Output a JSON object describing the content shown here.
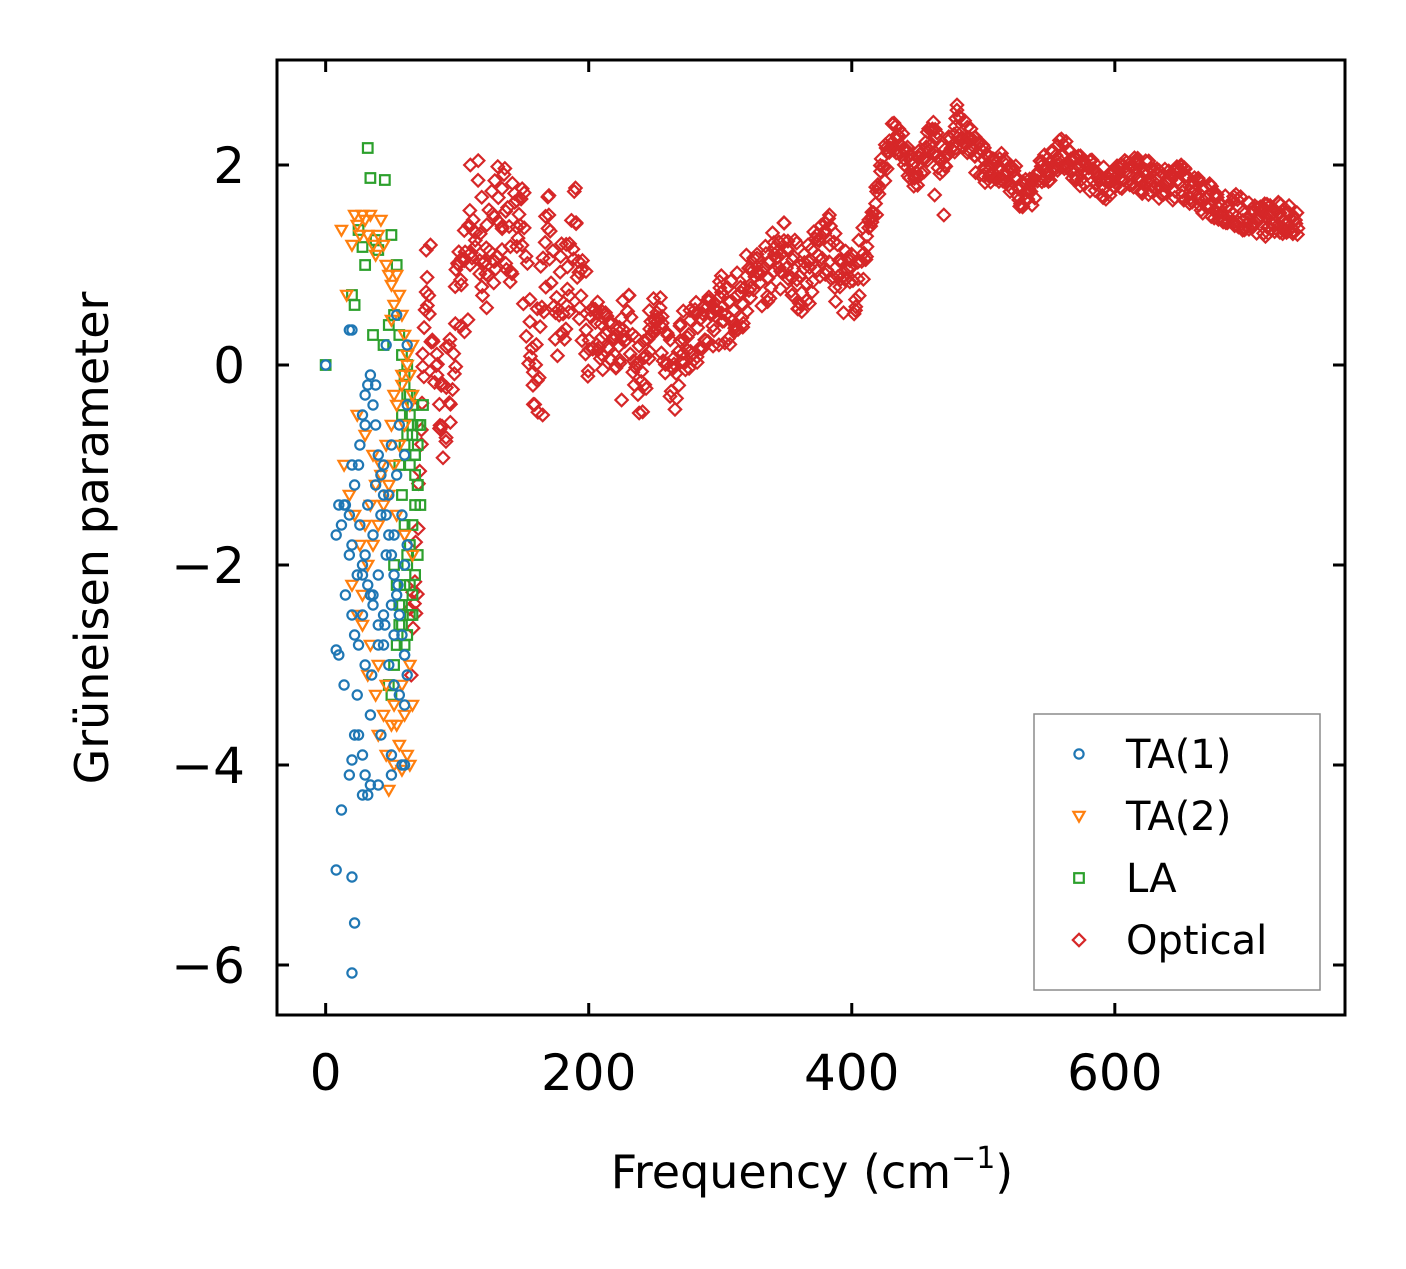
{
  "chart_data": {
    "type": "scatter",
    "xlabel": "Frequency (cm",
    "xlabel_sup": "−1",
    "xlabel_close": ")",
    "ylabel": "Grüneisen parameter",
    "xlim": [
      -37,
      775
    ],
    "ylim": [
      -6.5,
      3.05
    ],
    "xticks": [
      0,
      200,
      400,
      600
    ],
    "xtick_labels": [
      "0",
      "200",
      "400",
      "600"
    ],
    "yticks": [
      -6,
      -4,
      -2,
      0,
      2
    ],
    "ytick_labels": [
      "−6",
      "−4",
      "−2",
      "0",
      "2"
    ],
    "legend_position": "lower-right",
    "series": [
      {
        "name": "TA(1)",
        "marker": "circle",
        "color": "#1f77b4",
        "x": [
          0,
          15,
          18,
          20,
          12,
          14,
          22,
          25,
          26,
          28,
          30,
          32,
          34,
          36,
          38,
          40,
          42,
          44,
          46,
          48,
          50,
          52,
          54,
          56,
          58,
          60,
          62,
          10,
          15,
          20,
          25,
          30,
          35,
          40,
          45,
          50,
          55,
          60,
          62,
          28,
          32,
          36,
          40,
          44,
          48,
          52,
          56,
          60,
          24,
          30,
          36,
          42,
          48,
          54,
          60,
          20,
          26,
          32,
          38,
          44,
          50,
          56,
          62,
          22,
          28,
          34,
          40,
          46,
          52,
          58,
          10,
          20,
          30,
          38,
          46,
          54,
          62,
          8,
          18,
          28,
          36,
          44,
          52,
          60,
          14,
          24,
          34,
          42,
          50,
          58,
          18,
          28,
          40,
          50,
          60,
          12,
          20,
          22,
          25,
          28,
          30,
          32,
          34,
          8,
          20,
          22
        ],
        "y": [
          0,
          -1.4,
          -1.5,
          0.35,
          -1.6,
          -1.4,
          -1.2,
          -1.0,
          -0.8,
          -0.5,
          -0.3,
          -0.2,
          -0.1,
          -0.4,
          -0.6,
          -0.9,
          -1.1,
          -1.3,
          -1.5,
          -1.7,
          -1.9,
          -2.1,
          -2.3,
          -2.5,
          -2.7,
          -2.9,
          -3.1,
          -2.9,
          -2.3,
          -2.5,
          -2.8,
          -3.0,
          -3.1,
          -2.8,
          -2.6,
          -2.4,
          -2.2,
          -2.0,
          -1.8,
          -2.0,
          -2.2,
          -2.4,
          -2.6,
          -2.8,
          -3.0,
          -3.2,
          -3.3,
          -3.4,
          -2.1,
          -1.9,
          -1.7,
          -1.5,
          -1.3,
          -1.1,
          -0.9,
          -1.8,
          -1.6,
          -1.4,
          -1.2,
          -1.0,
          -0.8,
          -0.6,
          -0.4,
          -2.7,
          -2.5,
          -2.3,
          -2.1,
          -1.9,
          -1.7,
          -1.5,
          -1.4,
          -1.0,
          -0.6,
          -0.2,
          0.2,
          0.5,
          0.2,
          -1.7,
          -1.9,
          -2.1,
          -2.3,
          -2.5,
          -2.7,
          -2.9,
          -3.2,
          -3.3,
          -3.5,
          -3.7,
          -3.9,
          -4.0,
          -4.1,
          -4.3,
          -4.2,
          -4.1,
          -4.0,
          -4.45,
          -3.95,
          -3.7,
          -3.7,
          -3.9,
          -4.1,
          -4.3,
          -4.2,
          -5.05,
          -5.12,
          -5.58
        ],
        "extra_points": [
          [
            20,
            -6.08
          ],
          [
            8,
            -2.85
          ],
          [
            18,
            0.35
          ]
        ]
      },
      {
        "name": "TA(2)",
        "marker": "triangle-down",
        "color": "#ff7f0e",
        "x": [
          12,
          16,
          20,
          22,
          24,
          26,
          28,
          30,
          32,
          34,
          36,
          38,
          40,
          42,
          44,
          46,
          48,
          50,
          52,
          54,
          56,
          58,
          60,
          62,
          64,
          66,
          14,
          18,
          22,
          26,
          30,
          34,
          38,
          42,
          46,
          50,
          54,
          58,
          62,
          66,
          20,
          24,
          28,
          32,
          36,
          40,
          44,
          48,
          52,
          56,
          60,
          64,
          24,
          30,
          36,
          42,
          48,
          54,
          60,
          66,
          28,
          34,
          40,
          46,
          52,
          58,
          64,
          32,
          38,
          44,
          50,
          56,
          62,
          40,
          46,
          52,
          58,
          64,
          48,
          54,
          60,
          66,
          52,
          58,
          62,
          50
        ],
        "y": [
          1.35,
          0.7,
          1.2,
          1.5,
          1.4,
          1.3,
          1.5,
          1.45,
          1.3,
          1.5,
          1.2,
          1.1,
          1.3,
          1.45,
          1.2,
          1.0,
          0.9,
          0.8,
          0.6,
          0.9,
          0.7,
          0.5,
          0.3,
          0.1,
          -0.1,
          -0.3,
          -1.0,
          -1.3,
          -1.5,
          -1.8,
          -1.6,
          -1.4,
          -1.2,
          -1.0,
          -0.8,
          -0.6,
          -0.4,
          -0.2,
          0.0,
          0.2,
          -2.2,
          -2.5,
          -2.3,
          -2.0,
          -1.8,
          -1.6,
          -1.4,
          -1.2,
          -1.0,
          -0.8,
          -0.6,
          -0.4,
          -0.5,
          -0.7,
          -0.9,
          -1.1,
          -1.3,
          -1.5,
          -1.7,
          -1.9,
          -2.6,
          -2.8,
          -3.0,
          -3.2,
          -3.4,
          -3.2,
          -3.0,
          -3.1,
          -3.3,
          -3.5,
          -3.6,
          -3.8,
          -3.9,
          -3.7,
          -3.9,
          -4.0,
          -4.05,
          -4.0,
          -4.25,
          -3.6,
          -3.5,
          -3.4,
          -0.3,
          -0.1,
          0.1,
          0.45
        ],
        "extra_points": []
      },
      {
        "name": "LA",
        "marker": "square",
        "color": "#2ca02c",
        "x": [
          0,
          32,
          34,
          45,
          25,
          28,
          38,
          40,
          50,
          54,
          20,
          22,
          30,
          36,
          44,
          48,
          52,
          56,
          58,
          60,
          62,
          64,
          66,
          68,
          70,
          72,
          74,
          60,
          62,
          64,
          66,
          68,
          70,
          72,
          56,
          58,
          60,
          62,
          64,
          66,
          52,
          54,
          56,
          58,
          60,
          62,
          64,
          66,
          68,
          70,
          48,
          50,
          52,
          54,
          56,
          58,
          60,
          62,
          64,
          66,
          68,
          70,
          58,
          62,
          66,
          70,
          60,
          64,
          68
        ],
        "y": [
          0,
          2.17,
          1.87,
          1.85,
          1.35,
          1.18,
          1.25,
          1.15,
          1.3,
          1.0,
          0.7,
          0.6,
          1.0,
          0.3,
          0.2,
          0.4,
          0.5,
          0.3,
          0.1,
          -0.1,
          -0.3,
          -0.5,
          -0.7,
          -0.9,
          -0.8,
          -0.6,
          -0.4,
          -0.2,
          0.0,
          -0.3,
          -0.6,
          -0.9,
          -1.2,
          -1.4,
          -1.0,
          -1.3,
          -1.6,
          -1.9,
          -2.2,
          -2.5,
          -2.0,
          -2.2,
          -2.4,
          -2.6,
          -2.8,
          -2.7,
          -2.5,
          -2.3,
          -2.1,
          -1.9,
          -3.2,
          -3.3,
          -3.0,
          -2.8,
          -2.6,
          -2.4,
          -2.2,
          -2.0,
          -1.8,
          -1.6,
          -1.4,
          -1.2,
          -0.5,
          -0.7,
          -0.4,
          -0.6,
          -0.8,
          -1.0,
          -1.1
        ],
        "extra_points": []
      },
      {
        "name": "Optical",
        "marker": "diamond",
        "color": "#d62728",
        "trend": [
          [
            65,
            -2.9
          ],
          [
            68,
            -2.2
          ],
          [
            72,
            -1.0
          ],
          [
            75,
            0.6
          ],
          [
            78,
            1.0
          ],
          [
            82,
            0.2
          ],
          [
            88,
            -0.6
          ],
          [
            95,
            -0.1
          ],
          [
            100,
            0.5
          ],
          [
            108,
            1.0
          ],
          [
            115,
            1.5
          ],
          [
            120,
            1.0
          ],
          [
            130,
            1.5
          ],
          [
            140,
            1.4
          ],
          [
            150,
            1.2
          ],
          [
            155,
            0.2
          ],
          [
            160,
            -0.2
          ],
          [
            165,
            1.0
          ],
          [
            170,
            1.5
          ],
          [
            175,
            0.5
          ],
          [
            182,
            0.8
          ],
          [
            190,
            1.3
          ],
          [
            195,
            0.8
          ],
          [
            200,
            0.3
          ],
          [
            210,
            0.3
          ],
          [
            220,
            0.2
          ],
          [
            230,
            0.5
          ],
          [
            235,
            0.0
          ],
          [
            240,
            -0.2
          ],
          [
            245,
            0.2
          ],
          [
            250,
            0.5
          ],
          [
            258,
            0.2
          ],
          [
            265,
            -0.1
          ],
          [
            272,
            0.2
          ],
          [
            280,
            0.4
          ],
          [
            290,
            0.3
          ],
          [
            300,
            0.6
          ],
          [
            310,
            0.5
          ],
          [
            320,
            0.8
          ],
          [
            330,
            0.9
          ],
          [
            340,
            1.0
          ],
          [
            350,
            1.2
          ],
          [
            360,
            0.8
          ],
          [
            370,
            1.0
          ],
          [
            380,
            1.2
          ],
          [
            390,
            0.9
          ],
          [
            400,
            0.8
          ],
          [
            405,
            0.9
          ],
          [
            430,
            2.3
          ],
          [
            440,
            2.1
          ],
          [
            450,
            1.9
          ],
          [
            460,
            2.3
          ],
          [
            470,
            2.0
          ],
          [
            480,
            2.4
          ],
          [
            490,
            2.2
          ],
          [
            500,
            2.0
          ],
          [
            510,
            2.0
          ],
          [
            520,
            1.9
          ],
          [
            530,
            1.7
          ],
          [
            540,
            1.8
          ],
          [
            550,
            2.0
          ],
          [
            560,
            2.1
          ],
          [
            570,
            1.95
          ],
          [
            580,
            1.9
          ],
          [
            590,
            1.85
          ],
          [
            600,
            1.8
          ],
          [
            610,
            1.95
          ],
          [
            620,
            1.9
          ],
          [
            630,
            1.85
          ],
          [
            640,
            1.8
          ],
          [
            650,
            1.85
          ],
          [
            660,
            1.75
          ],
          [
            670,
            1.65
          ],
          [
            680,
            1.6
          ],
          [
            690,
            1.55
          ],
          [
            700,
            1.5
          ],
          [
            710,
            1.45
          ],
          [
            720,
            1.45
          ],
          [
            730,
            1.45
          ],
          [
            740,
            1.43
          ]
        ],
        "extra_points": [
          [
            110,
            2.0
          ],
          [
            165,
            -0.5
          ],
          [
            470,
            1.5
          ],
          [
            463,
            1.7
          ],
          [
            480,
            2.6
          ],
          [
            225,
            -0.35
          ],
          [
            383,
            1.5
          ]
        ]
      }
    ]
  }
}
